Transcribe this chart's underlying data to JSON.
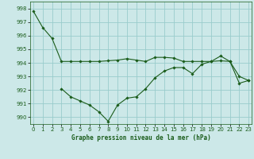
{
  "line1_x": [
    0,
    1,
    2,
    3,
    4,
    5,
    6,
    7,
    8,
    9,
    10,
    11,
    12,
    13,
    14,
    15,
    16,
    17,
    18,
    19,
    20,
    21,
    22,
    23
  ],
  "line1_y": [
    997.8,
    996.6,
    995.8,
    994.1,
    994.1,
    994.1,
    994.1,
    994.1,
    994.15,
    994.2,
    994.3,
    994.2,
    994.1,
    994.4,
    994.4,
    994.35,
    994.1,
    994.1,
    994.1,
    994.1,
    994.15,
    994.1,
    993.0,
    992.7
  ],
  "line2_x": [
    3,
    4,
    5,
    6,
    7,
    8,
    9,
    10,
    11,
    12,
    13,
    14,
    15,
    16,
    17,
    18,
    19,
    20,
    21,
    22,
    23
  ],
  "line2_y": [
    992.1,
    991.5,
    991.2,
    990.9,
    990.4,
    989.7,
    990.9,
    991.4,
    991.5,
    992.1,
    992.9,
    993.4,
    993.65,
    993.65,
    993.2,
    993.9,
    994.1,
    994.5,
    994.1,
    992.5,
    992.7
  ],
  "line_color": "#1a5c1a",
  "marker_color": "#1a5c1a",
  "bg_color": "#cce8e8",
  "grid_color": "#99cccc",
  "text_color": "#1a5c1a",
  "title": "Graphe pression niveau de la mer (hPa)",
  "ylim": [
    989.5,
    998.5
  ],
  "xlim": [
    -0.3,
    23.3
  ],
  "yticks": [
    990,
    991,
    992,
    993,
    994,
    995,
    996,
    997,
    998
  ],
  "xticks": [
    0,
    1,
    2,
    3,
    4,
    5,
    6,
    7,
    8,
    9,
    10,
    11,
    12,
    13,
    14,
    15,
    16,
    17,
    18,
    19,
    20,
    21,
    22,
    23
  ],
  "xtick_labels": [
    "0",
    "1",
    "2",
    "3",
    "4",
    "5",
    "6",
    "7",
    "8",
    "9",
    "10",
    "11",
    "12",
    "13",
    "14",
    "15",
    "16",
    "17",
    "18",
    "19",
    "20",
    "21",
    "22",
    "23"
  ]
}
